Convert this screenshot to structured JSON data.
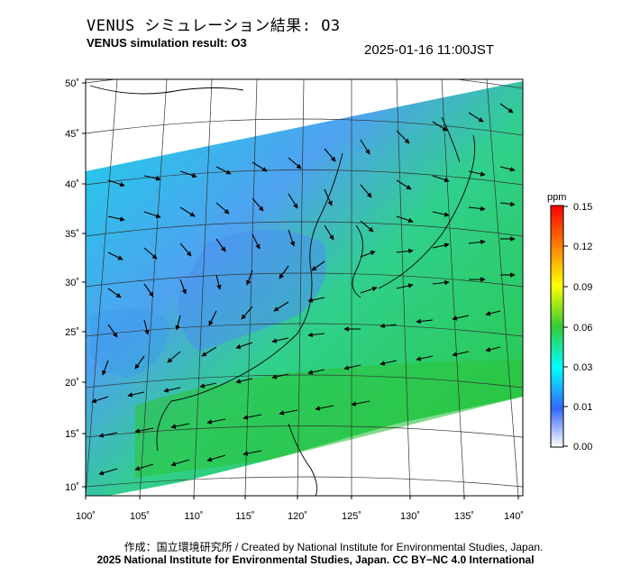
{
  "header": {
    "title_jp": "VENUS シミュレーション結果: O3",
    "title_en": "VENUS simulation result: O3",
    "timestamp": "2025-01-16 11:00JST"
  },
  "map": {
    "lat_labels": [
      "50˚",
      "45˚",
      "40˚",
      "35˚",
      "30˚",
      "25˚",
      "20˚",
      "15˚",
      "10˚"
    ],
    "lon_labels": [
      "100˚",
      "105˚",
      "110˚",
      "115˚",
      "120˚",
      "125˚",
      "130˚",
      "135˚",
      "140˚"
    ],
    "field": "O3",
    "vector_field": "wind"
  },
  "colorbar": {
    "unit": "ppm",
    "ticks": [
      "0.15",
      "0.12",
      "0.09",
      "0.06",
      "0.03",
      "0.01",
      "0.00"
    ],
    "colors": [
      "#ff0000",
      "#ff9900",
      "#ffff00",
      "#33cc33",
      "#00ffff",
      "#3366ff",
      "#ffffff"
    ]
  },
  "footer": {
    "credit_line": "作成：国立環境研究所 / Created by National Institute for Environmental Studies, Japan.",
    "copyright_line": "2025 National Institute for Environmental Studies, Japan. CC BY−NC 4.0 International"
  }
}
